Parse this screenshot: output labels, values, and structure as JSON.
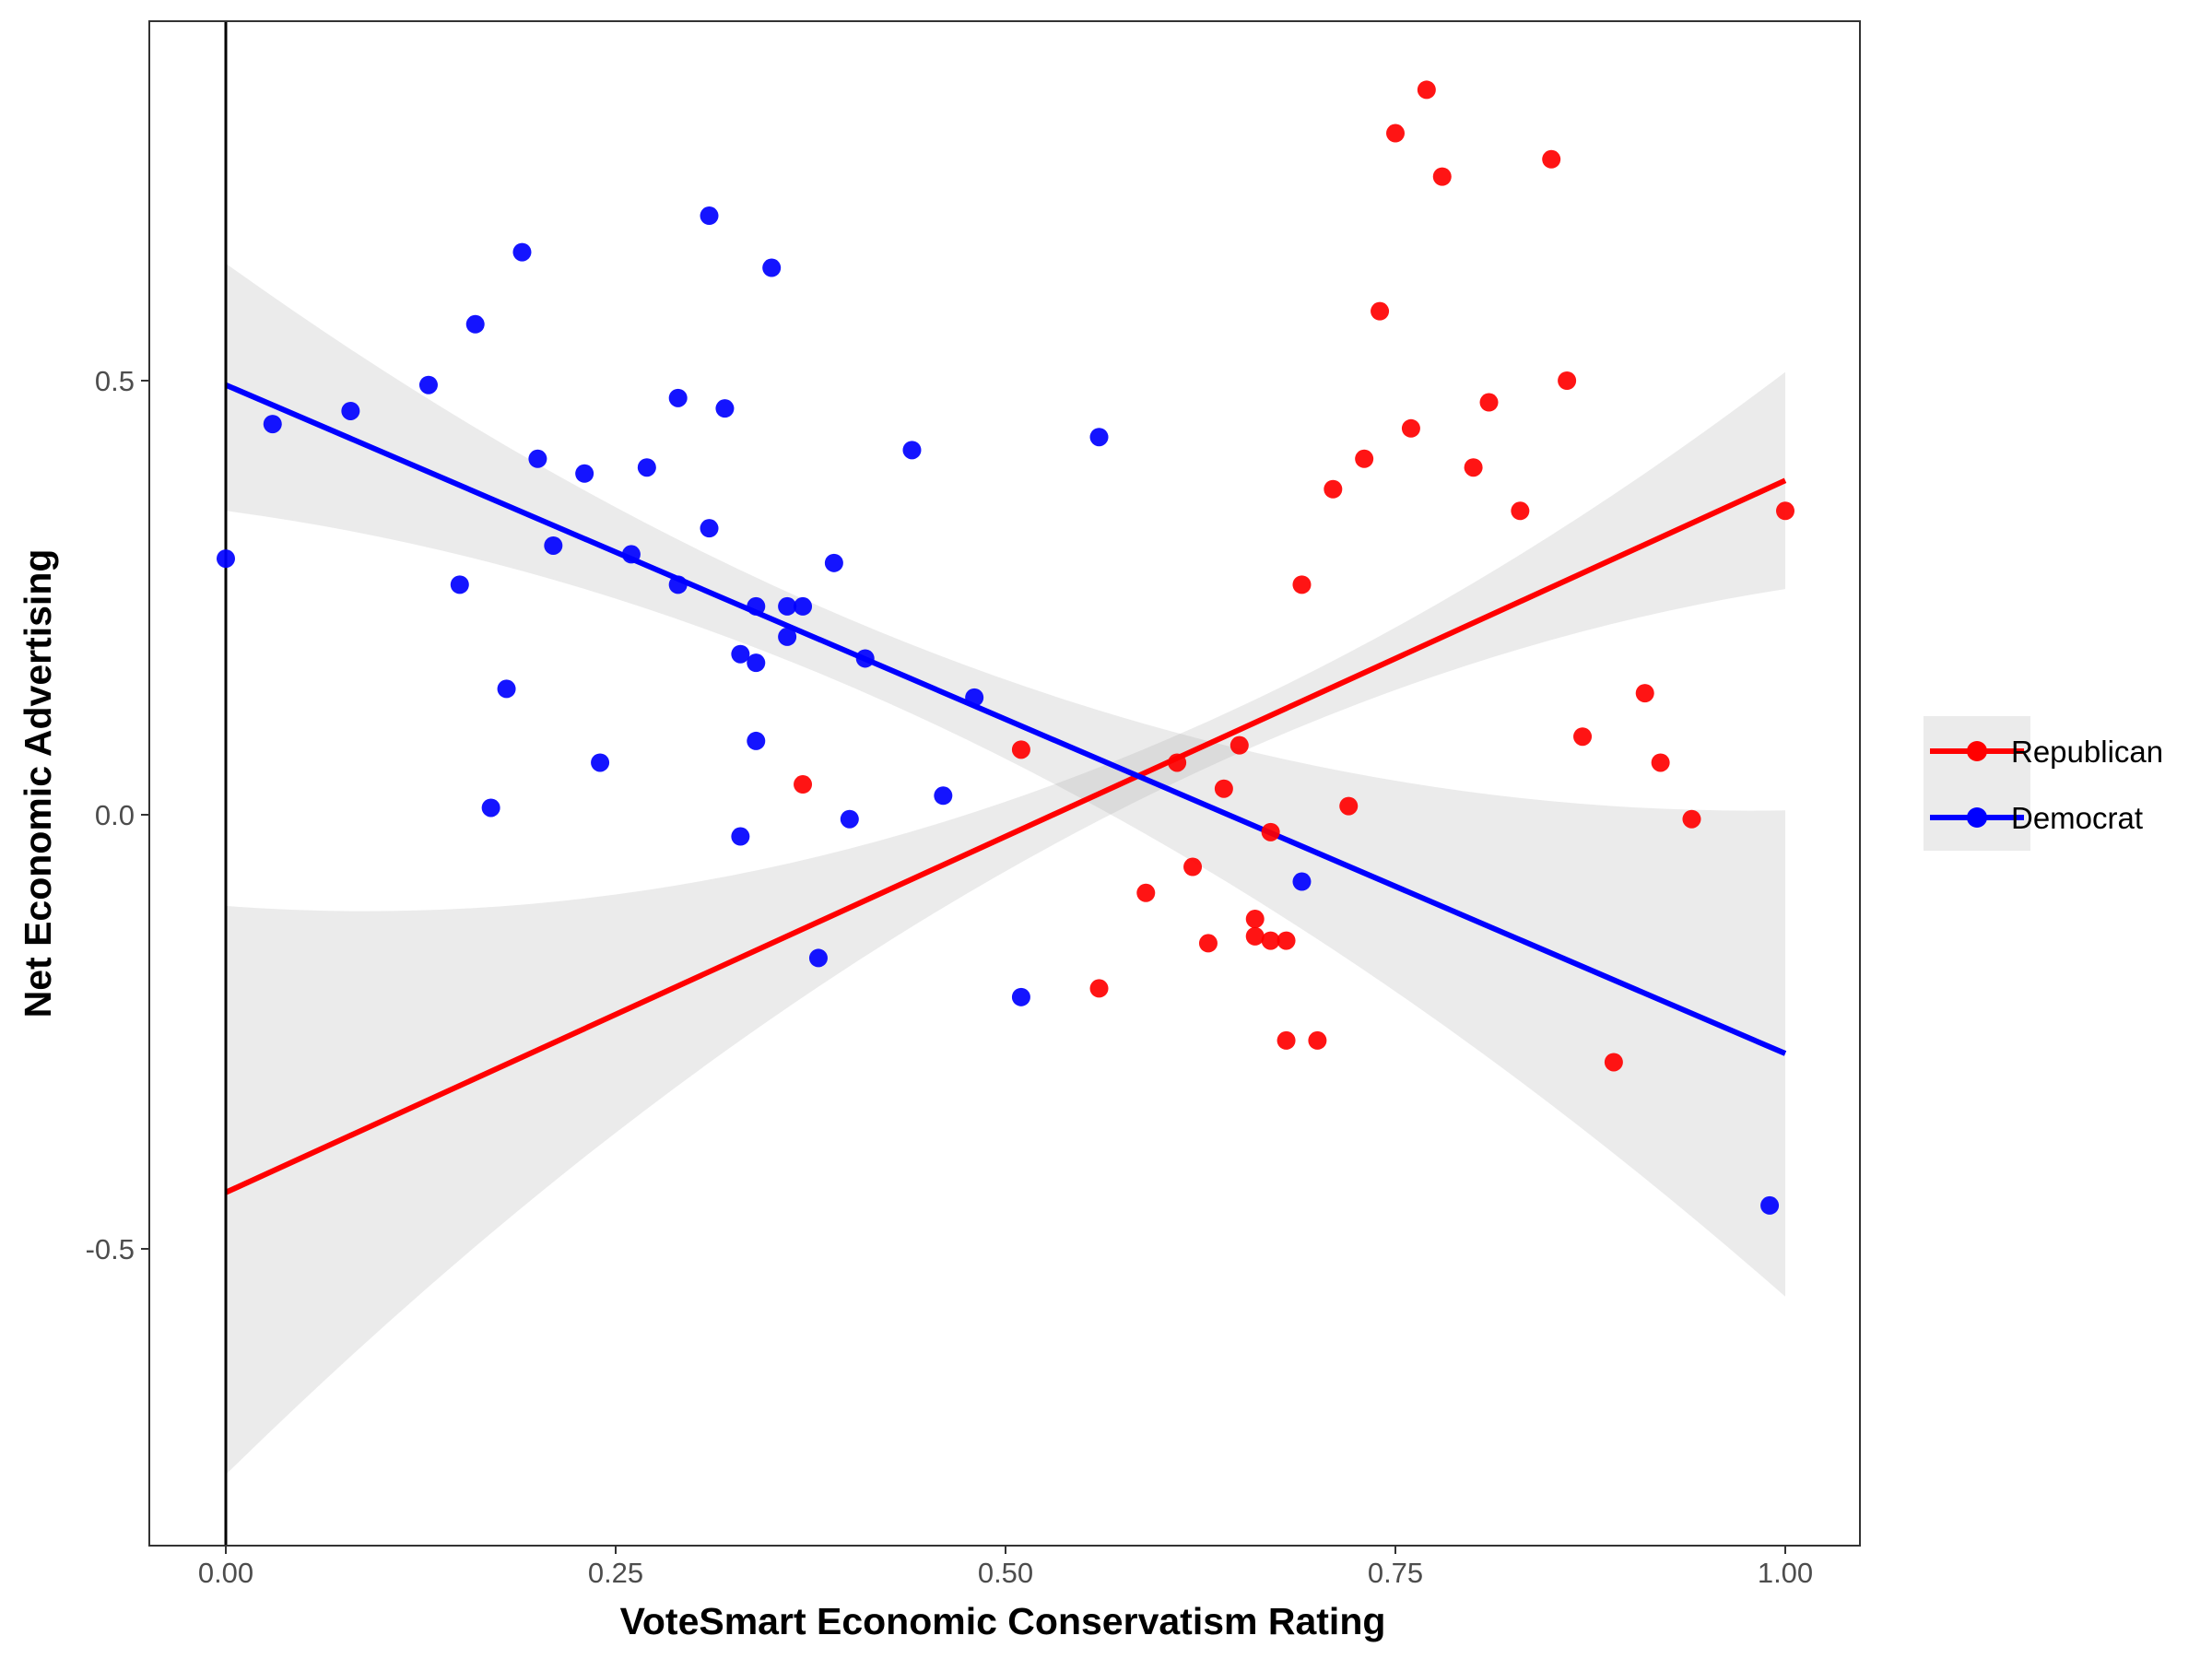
{
  "chart_data": {
    "type": "scatter",
    "title": "",
    "xlabel": "VoteSmart Economic Conservatism Rating",
    "ylabel": "Net Economic Advertising",
    "xlim": [
      -0.1,
      2.09
    ],
    "ylim": [
      -0.84,
      0.915
    ],
    "x_ticks": [
      {
        "value": 0,
        "label": "0.00"
      },
      {
        "value": 0.25,
        "label": "0.25"
      },
      {
        "value": 0.5,
        "label": "0.50"
      },
      {
        "value": 0.75,
        "label": "0.75"
      },
      {
        "value": 1.0,
        "label": "1.00"
      }
    ],
    "y_ticks": [
      {
        "value": 0.5,
        "label": "0.5"
      },
      {
        "value": 0.0,
        "label": "0.0"
      },
      {
        "value": -0.5,
        "label": "-0.5"
      }
    ],
    "vertical_reference_line": 0,
    "grid": false,
    "legend_position": "right",
    "legend": [
      {
        "name": "Republican",
        "color": "#ff0000"
      },
      {
        "name": "Democrat",
        "color": "#0000ff"
      }
    ],
    "series": [
      {
        "name": "Republican",
        "color": "#ff0000",
        "points": [
          [
            0.77,
            0.835
          ],
          [
            0.75,
            0.785
          ],
          [
            0.78,
            0.735
          ],
          [
            0.85,
            0.755
          ],
          [
            0.74,
            0.58
          ],
          [
            0.86,
            0.5
          ],
          [
            0.81,
            0.475
          ],
          [
            0.76,
            0.445
          ],
          [
            0.73,
            0.41
          ],
          [
            0.8,
            0.4
          ],
          [
            0.71,
            0.375
          ],
          [
            0.83,
            0.35
          ],
          [
            1.0,
            0.35
          ],
          [
            0.69,
            0.265
          ],
          [
            0.91,
            0.14
          ],
          [
            0.87,
            0.09
          ],
          [
            0.65,
            0.08
          ],
          [
            0.51,
            0.075
          ],
          [
            0.61,
            0.06
          ],
          [
            0.92,
            0.06
          ],
          [
            0.37,
            0.035
          ],
          [
            0.64,
            0.03
          ],
          [
            0.72,
            0.01
          ],
          [
            0.94,
            -0.005
          ],
          [
            0.67,
            -0.02
          ],
          [
            0.62,
            -0.06
          ],
          [
            0.59,
            -0.09
          ],
          [
            0.66,
            -0.12
          ],
          [
            0.66,
            -0.14
          ],
          [
            0.67,
            -0.145
          ],
          [
            0.68,
            -0.145
          ],
          [
            0.63,
            -0.148
          ],
          [
            0.56,
            -0.2
          ],
          [
            0.68,
            -0.26
          ],
          [
            0.7,
            -0.26
          ],
          [
            0.89,
            -0.285
          ]
        ],
        "fit": {
          "x0": 0.0,
          "y0": -0.435,
          "x1": 1.0,
          "y1": 0.385
        },
        "ci_band": {
          "left": {
            "x": 0.0,
            "lower": -0.76,
            "upper": -0.105
          },
          "right": {
            "x": 1.0,
            "lower": 0.26,
            "upper": 0.51
          }
        }
      },
      {
        "name": "Democrat",
        "color": "#0000ff",
        "points": [
          [
            0.31,
            0.69
          ],
          [
            0.19,
            0.648
          ],
          [
            0.35,
            0.63
          ],
          [
            0.16,
            0.565
          ],
          [
            0.13,
            0.495
          ],
          [
            0.29,
            0.48
          ],
          [
            0.32,
            0.468
          ],
          [
            0.08,
            0.465
          ],
          [
            0.03,
            0.45
          ],
          [
            0.56,
            0.435
          ],
          [
            0.44,
            0.42
          ],
          [
            0.2,
            0.41
          ],
          [
            0.27,
            0.4
          ],
          [
            0.23,
            0.393
          ],
          [
            0.31,
            0.33
          ],
          [
            0.21,
            0.31
          ],
          [
            0.26,
            0.3
          ],
          [
            0.0,
            0.295
          ],
          [
            0.39,
            0.29
          ],
          [
            0.15,
            0.265
          ],
          [
            0.29,
            0.265
          ],
          [
            0.34,
            0.24
          ],
          [
            0.36,
            0.24
          ],
          [
            0.37,
            0.24
          ],
          [
            0.36,
            0.205
          ],
          [
            0.33,
            0.185
          ],
          [
            0.41,
            0.18
          ],
          [
            0.34,
            0.175
          ],
          [
            0.48,
            0.135
          ],
          [
            0.18,
            0.145
          ],
          [
            0.34,
            0.085
          ],
          [
            0.24,
            0.06
          ],
          [
            0.46,
            0.022
          ],
          [
            0.17,
            0.008
          ],
          [
            0.4,
            -0.005
          ],
          [
            0.33,
            -0.025
          ],
          [
            0.69,
            -0.077
          ],
          [
            0.38,
            -0.165
          ],
          [
            0.51,
            -0.21
          ],
          [
            0.99,
            -0.45
          ]
        ],
        "fit": {
          "x0": 0.0,
          "y0": 0.495,
          "x1": 1.0,
          "y1": -0.275
        },
        "ci_band": {
          "left": {
            "x": 0.0,
            "lower": 0.35,
            "upper": 0.635
          },
          "right": {
            "x": 1.0,
            "lower": -0.555,
            "upper": 0.005
          }
        }
      }
    ]
  }
}
